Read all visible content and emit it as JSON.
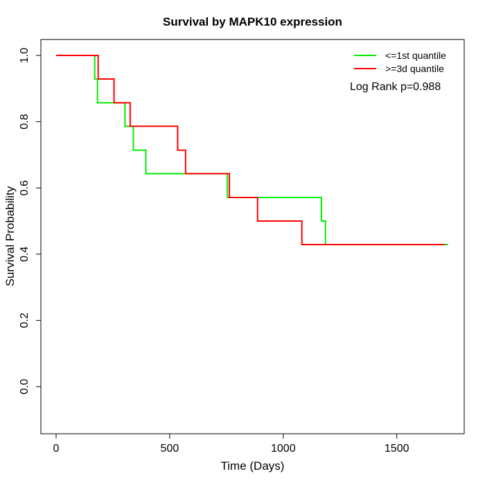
{
  "figure": {
    "title": "Survival by MAPK10 expression",
    "xlabel": "Time (Days)",
    "ylabel": "Survival Probability",
    "annotation": "Log Rank p=0.988"
  },
  "chart_data": {
    "type": "line",
    "subtype": "kaplan-meier-step",
    "title": "Survival by MAPK10 expression",
    "xlabel": "Time (Days)",
    "ylabel": "Survival Probability",
    "x_ticks": [
      0,
      500,
      1000,
      1500
    ],
    "y_ticks": [
      "0.0",
      "0.2",
      "0.4",
      "0.6",
      "0.8",
      "1.0"
    ],
    "x_range_days": [
      -67,
      1792
    ],
    "y_range": [
      -0.14,
      1.05
    ],
    "grid": false,
    "legend_position": "top-right",
    "annotation": "Log Rank p=0.988",
    "series": [
      {
        "name": "<=1st quantile",
        "color": "#00ee00",
        "start": [
          0,
          1.0
        ],
        "event_times": [
          170,
          182,
          303,
          340,
          395,
          754,
          1168,
          1186
        ],
        "survival_after_event": [
          0.929,
          0.857,
          0.786,
          0.714,
          0.643,
          0.571,
          0.5,
          0.429
        ],
        "end_time": 1726
      },
      {
        "name": ">=3d quantile",
        "color": "#ff0000",
        "start": [
          0,
          1.0
        ],
        "event_times": [
          185,
          255,
          326,
          535,
          570,
          763,
          887,
          1082
        ],
        "survival_after_event": [
          0.929,
          0.857,
          0.786,
          0.714,
          0.643,
          0.571,
          0.5,
          0.429
        ],
        "end_time": 1711
      }
    ]
  }
}
